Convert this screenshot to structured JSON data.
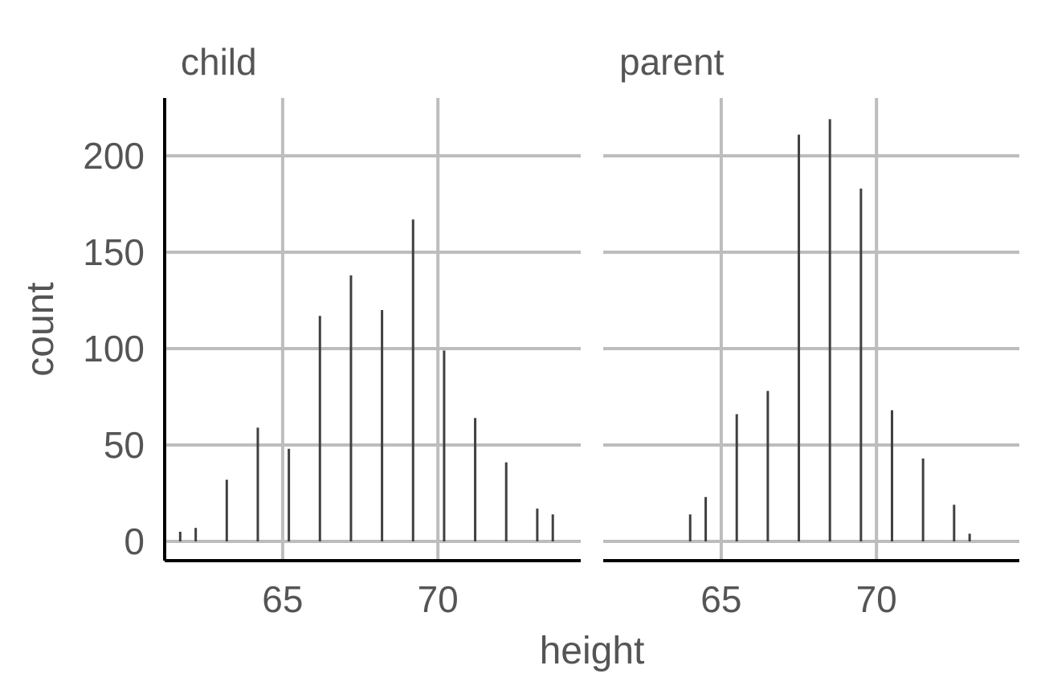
{
  "chart_data": {
    "type": "bar",
    "style": "spike",
    "ylabel": "count",
    "xlabel": "height",
    "xlim": [
      61.2,
      74.6
    ],
    "ylim": [
      -10,
      230
    ],
    "x_ticks": [
      "65",
      "70"
    ],
    "y_ticks": [
      "0",
      "50",
      "100",
      "150",
      "200"
    ],
    "x_tick_values": [
      65,
      70
    ],
    "y_tick_values": [
      0,
      50,
      100,
      150,
      200
    ],
    "grid": true,
    "bar_color": "#404040",
    "grid_color": "#bdbdbd",
    "panels": [
      {
        "label": "child",
        "x": [
          61.7,
          62.2,
          63.2,
          64.2,
          65.2,
          66.2,
          67.2,
          68.2,
          69.2,
          70.2,
          71.2,
          72.2,
          73.2,
          73.7
        ],
        "values": [
          5,
          7,
          32,
          59,
          48,
          117,
          138,
          120,
          167,
          99,
          64,
          41,
          17,
          14
        ]
      },
      {
        "label": "parent",
        "x": [
          64.0,
          64.5,
          65.5,
          66.5,
          67.5,
          68.5,
          69.5,
          70.5,
          71.5,
          72.5,
          73.0
        ],
        "values": [
          14,
          23,
          66,
          78,
          211,
          219,
          183,
          68,
          43,
          19,
          4
        ]
      }
    ]
  }
}
